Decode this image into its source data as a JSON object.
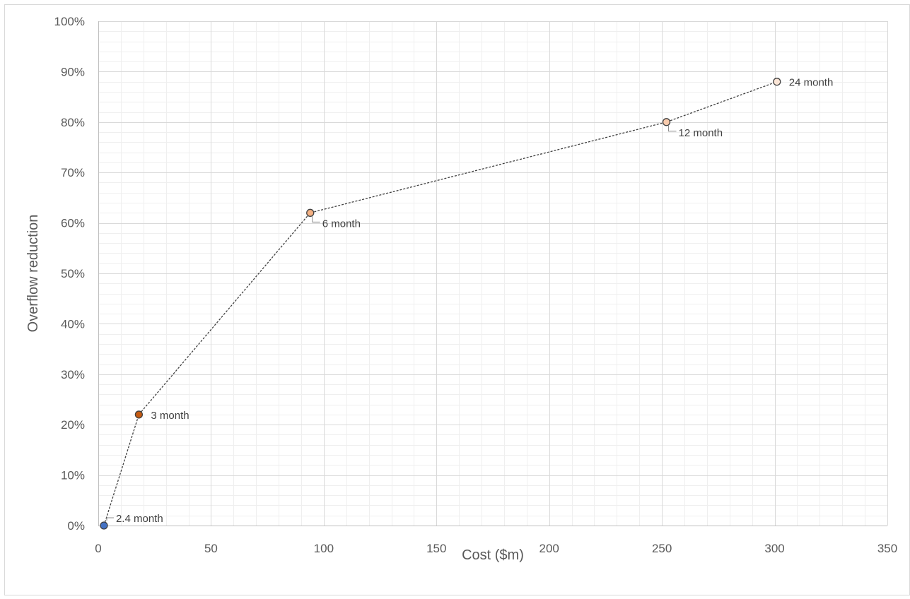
{
  "chart_data": {
    "type": "scatter",
    "xlabel": "Cost ($m)",
    "ylabel": "Overflow reduction",
    "xlim": [
      0,
      350
    ],
    "ylim": [
      0,
      100
    ],
    "x_major_step": 50,
    "x_minor_step": 10,
    "y_major_step": 10,
    "y_minor_step": 2,
    "x_tick_labels": [
      "0",
      "50",
      "100",
      "150",
      "200",
      "250",
      "300",
      "350"
    ],
    "y_tick_labels": [
      "0%",
      "10%",
      "20%",
      "30%",
      "40%",
      "50%",
      "60%",
      "70%",
      "80%",
      "90%",
      "100%"
    ],
    "grid": true,
    "line_style": "dotted-connector",
    "points": [
      {
        "x": 2.5,
        "y": 0,
        "label": "2.4 month",
        "color": "#4472c4",
        "label_position": "upper-right-leader"
      },
      {
        "x": 18,
        "y": 22,
        "label": "3 month",
        "color": "#c55a11",
        "label_position": "right"
      },
      {
        "x": 94,
        "y": 62,
        "label": "6 month",
        "color": "#f4b183",
        "label_position": "lower-right-leader"
      },
      {
        "x": 252,
        "y": 80,
        "label": "12 month",
        "color": "#f8cbad",
        "label_position": "lower-right-leader"
      },
      {
        "x": 301,
        "y": 88,
        "label": "24 month",
        "color": "#fbe5d6",
        "label_position": "right"
      }
    ]
  }
}
